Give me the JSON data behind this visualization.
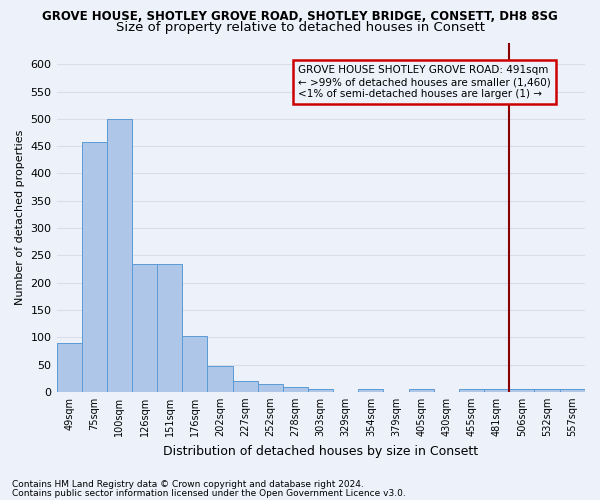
{
  "title1": "GROVE HOUSE, SHOTLEY GROVE ROAD, SHOTLEY BRIDGE, CONSETT, DH8 8SG",
  "title2": "Size of property relative to detached houses in Consett",
  "xlabel": "Distribution of detached houses by size in Consett",
  "ylabel": "Number of detached properties",
  "categories": [
    "49sqm",
    "75sqm",
    "100sqm",
    "126sqm",
    "151sqm",
    "176sqm",
    "202sqm",
    "227sqm",
    "252sqm",
    "278sqm",
    "303sqm",
    "329sqm",
    "354sqm",
    "379sqm",
    "405sqm",
    "430sqm",
    "455sqm",
    "481sqm",
    "506sqm",
    "532sqm",
    "557sqm"
  ],
  "values": [
    90,
    457,
    500,
    235,
    235,
    103,
    47,
    20,
    14,
    9,
    5,
    0,
    5,
    0,
    5,
    0,
    5,
    5,
    5,
    5,
    5
  ],
  "bar_color": "#aec6e8",
  "bar_edge_color": "#5b9bd5",
  "vline_x": 17.5,
  "vline_color": "#8b0000",
  "annotation_text": "GROVE HOUSE SHOTLEY GROVE ROAD: 491sqm\n← >99% of detached houses are smaller (1,460)\n<1% of semi-detached houses are larger (1) →",
  "annotation_box_color": "#cc0000",
  "ylim": [
    0,
    640
  ],
  "yticks": [
    0,
    50,
    100,
    150,
    200,
    250,
    300,
    350,
    400,
    450,
    500,
    550,
    600
  ],
  "footnote1": "Contains HM Land Registry data © Crown copyright and database right 2024.",
  "footnote2": "Contains public sector information licensed under the Open Government Licence v3.0.",
  "bg_color": "#edf2fa",
  "grid_color": "#d8dde8",
  "title_fontsize": 8.5,
  "subtitle_fontsize": 9.5
}
